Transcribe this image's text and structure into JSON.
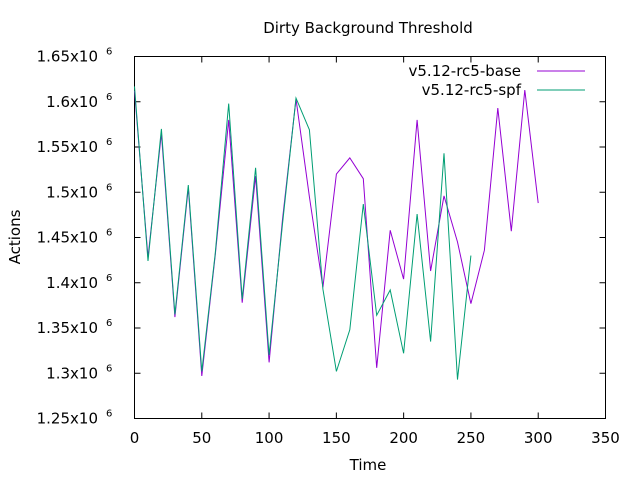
{
  "chart_data": {
    "type": "line",
    "title": "Dirty Background Threshold",
    "xlabel": "Time",
    "ylabel": "Actions",
    "xlim": [
      0,
      350
    ],
    "ylim": [
      1250000,
      1650000
    ],
    "grid": false,
    "legend_position": "top-right",
    "x_ticks": [
      {
        "value": 0,
        "label": "0"
      },
      {
        "value": 50,
        "label": "50"
      },
      {
        "value": 100,
        "label": "100"
      },
      {
        "value": 150,
        "label": "150"
      },
      {
        "value": 200,
        "label": "200"
      },
      {
        "value": 250,
        "label": "250"
      },
      {
        "value": 300,
        "label": "300"
      },
      {
        "value": 350,
        "label": "350"
      }
    ],
    "y_ticks": [
      {
        "value": 1250000,
        "mantissa": "1.25x10",
        "exponent": "6"
      },
      {
        "value": 1300000,
        "mantissa": "1.3x10",
        "exponent": "6"
      },
      {
        "value": 1350000,
        "mantissa": "1.35x10",
        "exponent": "6"
      },
      {
        "value": 1400000,
        "mantissa": "1.4x10",
        "exponent": "6"
      },
      {
        "value": 1450000,
        "mantissa": "1.45x10",
        "exponent": "6"
      },
      {
        "value": 1500000,
        "mantissa": "1.5x10",
        "exponent": "6"
      },
      {
        "value": 1550000,
        "mantissa": "1.55x10",
        "exponent": "6"
      },
      {
        "value": 1600000,
        "mantissa": "1.6x10",
        "exponent": "6"
      },
      {
        "value": 1650000,
        "mantissa": "1.65x10",
        "exponent": "6"
      }
    ],
    "series": [
      {
        "name": "v5.12-rc5-base",
        "color": "#9400d3",
        "points": [
          [
            0,
            1612000
          ],
          [
            10,
            1428000
          ],
          [
            20,
            1565000
          ],
          [
            30,
            1362000
          ],
          [
            40,
            1505000
          ],
          [
            50,
            1297000
          ],
          [
            60,
            1430000
          ],
          [
            70,
            1580000
          ],
          [
            80,
            1378000
          ],
          [
            90,
            1518000
          ],
          [
            100,
            1312000
          ],
          [
            110,
            1470000
          ],
          [
            120,
            1603000
          ],
          [
            130,
            1495000
          ],
          [
            140,
            1395000
          ],
          [
            150,
            1520000
          ],
          [
            160,
            1538000
          ],
          [
            170,
            1515000
          ],
          [
            180,
            1306000
          ],
          [
            190,
            1458000
          ],
          [
            200,
            1404000
          ],
          [
            210,
            1580000
          ],
          [
            220,
            1413000
          ],
          [
            230,
            1496000
          ],
          [
            240,
            1445000
          ],
          [
            250,
            1377000
          ],
          [
            260,
            1436000
          ],
          [
            270,
            1593000
          ],
          [
            280,
            1457000
          ],
          [
            290,
            1613000
          ],
          [
            300,
            1488000
          ]
        ]
      },
      {
        "name": "v5.12-rc5-spf",
        "color": "#009e73",
        "points": [
          [
            0,
            1617000
          ],
          [
            10,
            1424000
          ],
          [
            20,
            1570000
          ],
          [
            30,
            1365000
          ],
          [
            40,
            1508000
          ],
          [
            50,
            1302000
          ],
          [
            60,
            1432000
          ],
          [
            70,
            1598000
          ],
          [
            80,
            1382000
          ],
          [
            90,
            1527000
          ],
          [
            100,
            1320000
          ],
          [
            110,
            1465000
          ],
          [
            120,
            1604000
          ],
          [
            130,
            1569000
          ],
          [
            140,
            1393000
          ],
          [
            150,
            1302000
          ],
          [
            160,
            1348000
          ],
          [
            170,
            1487000
          ],
          [
            180,
            1364000
          ],
          [
            190,
            1392000
          ],
          [
            200,
            1322000
          ],
          [
            210,
            1476000
          ],
          [
            220,
            1335000
          ],
          [
            230,
            1543000
          ],
          [
            240,
            1293000
          ],
          [
            250,
            1430000
          ]
        ]
      }
    ]
  }
}
